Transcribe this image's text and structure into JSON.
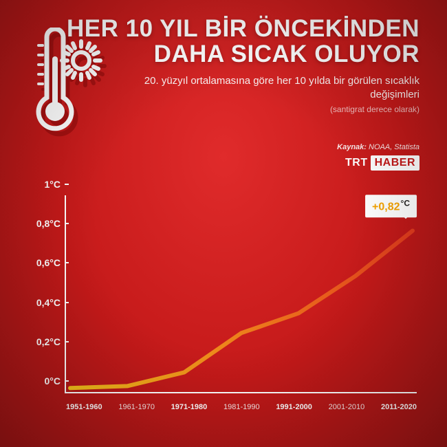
{
  "header": {
    "title_line1": "HER 10 YIL BİR ÖNCEKİNDEN",
    "title_line2": "DAHA SICAK OLUYOR",
    "subtitle": "20. yüzyıl ortalamasına göre her 10 yılda bir görülen sıcaklık değişimleri",
    "subnote": "(santigrat derece olarak)"
  },
  "source": {
    "label": "Kaynak:",
    "text": "NOAA, Statista",
    "logo_a": "TRT",
    "logo_b": "HABER"
  },
  "palette": {
    "bg_center": "#e02b2b",
    "bg_edge": "#a01515",
    "axis": "#ffffff",
    "line_start": "#f6c21a",
    "line_end": "#e23b1d",
    "callout_bg": "#ffffff",
    "callout_accent": "#f5a300"
  },
  "chart": {
    "type": "line",
    "ylim": [
      0,
      1
    ],
    "yticks": [
      {
        "v": 0,
        "label": "0°C"
      },
      {
        "v": 0.2,
        "label": "0,2°C"
      },
      {
        "v": 0.4,
        "label": "0,4°C"
      },
      {
        "v": 0.6,
        "label": "0,6°C"
      },
      {
        "v": 0.8,
        "label": "0,8°C"
      },
      {
        "v": 1,
        "label": "1°C"
      }
    ],
    "categories": [
      {
        "label": "1951-1960",
        "bold": true
      },
      {
        "label": "1961-1970",
        "bold": false
      },
      {
        "label": "1971-1980",
        "bold": true
      },
      {
        "label": "1981-1990",
        "bold": false
      },
      {
        "label": "1991-2000",
        "bold": true
      },
      {
        "label": "2001-2010",
        "bold": false
      },
      {
        "label": "2011-2020",
        "bold": true
      }
    ],
    "values": [
      0.02,
      0.03,
      0.1,
      0.3,
      0.4,
      0.59,
      0.82
    ],
    "line_width": 6,
    "callout": {
      "index": 6,
      "text_plus": "+0,82",
      "text_deg": "°C"
    }
  }
}
